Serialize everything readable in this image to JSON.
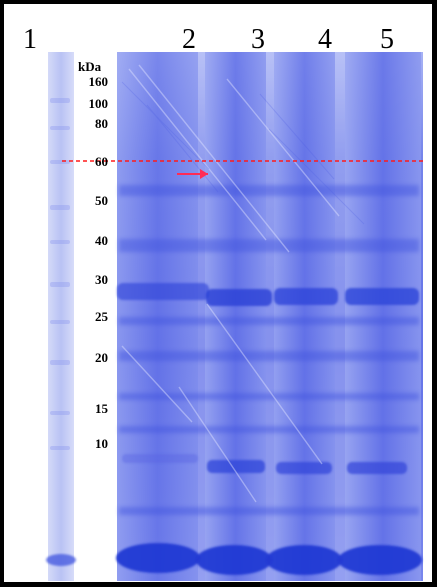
{
  "gel": {
    "lane_numbers": [
      "1",
      "2",
      "3",
      "4",
      "5"
    ],
    "marker_title": "kDa",
    "marker_labels": [
      "160",
      "100",
      "80",
      "60",
      "50",
      "40",
      "30",
      "25",
      "20",
      "15",
      "10"
    ],
    "colors": {
      "stain_blue": "#4f63e6",
      "background": "#ffffff",
      "frame": "#000000",
      "guide_line": "#ff1a1a",
      "arrow": "#ff2b55"
    }
  }
}
